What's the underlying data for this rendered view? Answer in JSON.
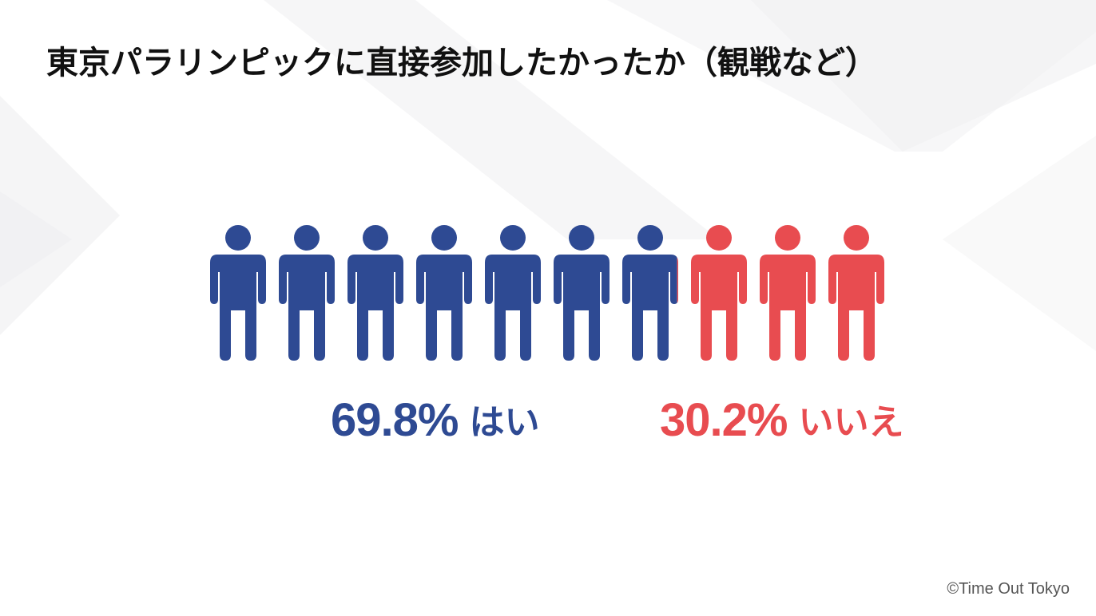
{
  "title": "東京パラリンピックに直接参加したかったか（観戦など）",
  "colors": {
    "yes": "#2e4a93",
    "no": "#e84c50",
    "title": "#111111"
  },
  "chart_data": {
    "type": "pictogram",
    "icon": "person-icon",
    "icon_count": 10,
    "series": [
      {
        "name": "はい",
        "value": 69.8,
        "value_label": "69.8%",
        "color": "#2e4a93"
      },
      {
        "name": "いいえ",
        "value": 30.2,
        "value_label": "30.2%",
        "color": "#e84c50"
      }
    ]
  },
  "copyright": "©Time Out Tokyo"
}
